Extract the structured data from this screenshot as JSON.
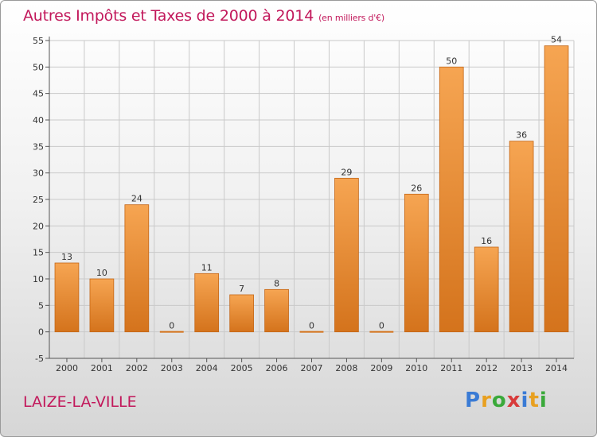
{
  "header": {
    "title": "Autres Impôts et Taxes de 2000 à 2014",
    "unit": "(en milliers d'€)"
  },
  "footer": {
    "commune": "LAIZE-LA-VILLE",
    "logo_letters": [
      "P",
      "r",
      "o",
      "x",
      "i",
      "t",
      "i"
    ],
    "logo_colors": [
      "#3a7bd5",
      "#e8a020",
      "#3aa93a",
      "#d83a3a",
      "#3a7bd5",
      "#e8a020",
      "#3aa93a"
    ]
  },
  "colors": {
    "title": "#c2185b",
    "bar_top": "#f6a552",
    "bar_bottom": "#d4731c",
    "grid": "#c9c9c9"
  },
  "chart_data": {
    "type": "bar",
    "title": "Autres Impôts et Taxes de 2000 à 2014",
    "subtitle": "(en milliers d'€)",
    "categories": [
      "2000",
      "2001",
      "2002",
      "2003",
      "2004",
      "2005",
      "2006",
      "2007",
      "2008",
      "2009",
      "2010",
      "2011",
      "2012",
      "2013",
      "2014"
    ],
    "values": [
      13,
      10,
      24,
      0,
      11,
      7,
      8,
      0,
      29,
      0,
      26,
      50,
      16,
      36,
      54
    ],
    "ylim": [
      -5,
      55
    ],
    "yticks": [
      -5,
      0,
      5,
      10,
      15,
      20,
      25,
      30,
      35,
      40,
      45,
      50,
      55
    ],
    "grid": true,
    "data_labels": true
  }
}
